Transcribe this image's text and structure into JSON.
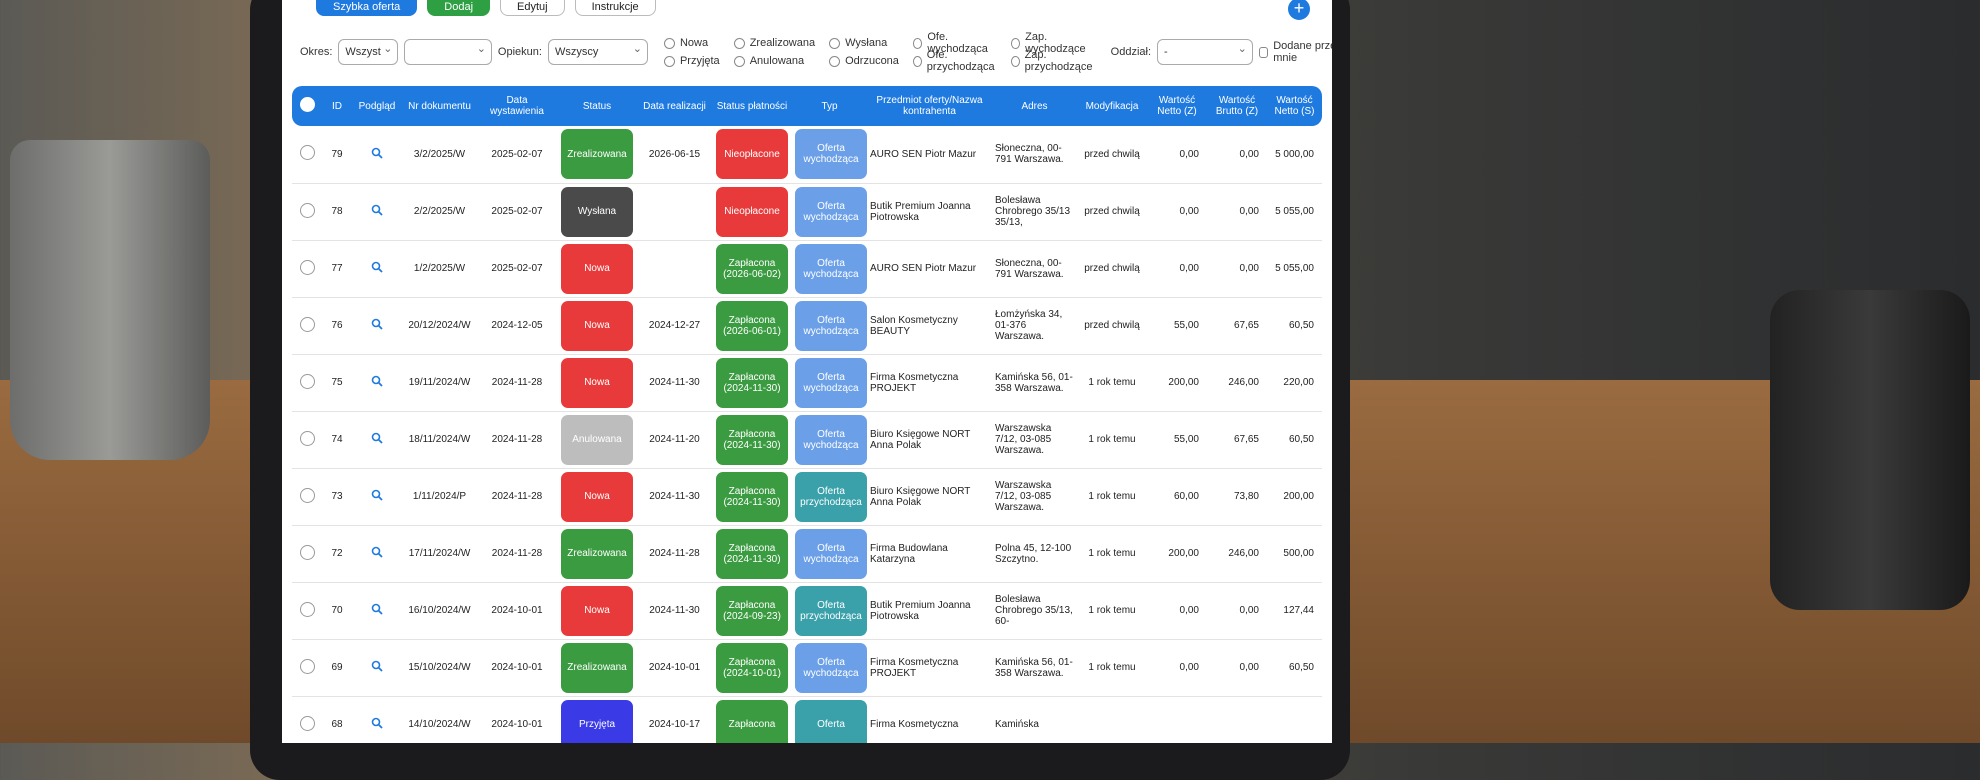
{
  "toolbar": {
    "buttons": [
      "Szybka oferta",
      "Dodaj",
      "Edytuj",
      "Instrukcje"
    ]
  },
  "filters": {
    "period_label": "Okres:",
    "period_value": "Wszyst",
    "caretaker_label": "Opiekun:",
    "caretaker_value": "Wszyscy",
    "statuses": [
      "Nowa",
      "Przyjęta",
      "Zrealizowana",
      "Anulowana",
      "Wysłana",
      "Odrzucona",
      "Ofe. wychodząca",
      "Ofe. przychodząca",
      "Zap. wychodzące",
      "Zap. przychodzące"
    ],
    "branch_label": "Oddział:",
    "branch_value": "-",
    "mine": "Dodane przeze mnie"
  },
  "table": {
    "columns": [
      "ID",
      "Podgląd",
      "Nr dokumentu",
      "Data wystawienia",
      "Status",
      "Data realizacji",
      "Status płatności",
      "Typ",
      "Przedmiot oferty/Nazwa kontrahenta",
      "Adres",
      "Modyfikacja",
      "Wartość Netto (Z)",
      "Wartość Brutto (Z)",
      "Wartość Netto (S)"
    ],
    "rows": [
      {
        "id": "79",
        "doc": "3/2/2025/W",
        "issued": "2025-02-07",
        "status": {
          "text": "Zrealizowana",
          "color": "#3b9b41"
        },
        "realized": "2026-06-15",
        "payment": {
          "text": "Nieopłacone",
          "color": "#e83a3a"
        },
        "type": {
          "text": "Oferta wychodząca",
          "color": "#6ba0e8"
        },
        "client": "AURO SEN Piotr Mazur",
        "address": "Słoneczna, 00-791 Warszawa.",
        "modified": "przed chwilą",
        "net_z": "0,00",
        "gross_z": "0,00",
        "net_s": "5 000,00"
      },
      {
        "id": "78",
        "doc": "2/2/2025/W",
        "issued": "2025-02-07",
        "status": {
          "text": "Wysłana",
          "color": "#4a4a4a"
        },
        "realized": null,
        "payment": {
          "text": "Nieopłacone",
          "color": "#e83a3a"
        },
        "type": {
          "text": "Oferta wychodząca",
          "color": "#6ba0e8"
        },
        "client": "Butik Premium Joanna Piotrowska",
        "address": "Bolesława Chrobrego 35/13 35/13,",
        "modified": "przed chwilą",
        "net_z": "0,00",
        "gross_z": "0,00",
        "net_s": "5 055,00"
      },
      {
        "id": "77",
        "doc": "1/2/2025/W",
        "issued": "2025-02-07",
        "status": {
          "text": "Nowa",
          "color": "#e83a3a"
        },
        "realized": null,
        "payment": {
          "text": "Zapłacona (2026-06-02)",
          "color": "#3b9b41"
        },
        "type": {
          "text": "Oferta wychodząca",
          "color": "#6ba0e8"
        },
        "client": "AURO SEN Piotr Mazur",
        "address": "Słoneczna, 00-791 Warszawa.",
        "modified": "przed chwilą",
        "net_z": "0,00",
        "gross_z": "0,00",
        "net_s": "5 055,00"
      },
      {
        "id": "76",
        "doc": "20/12/2024/W",
        "issued": "2024-12-05",
        "status": {
          "text": "Nowa",
          "color": "#e83a3a"
        },
        "realized": "2024-12-27",
        "payment": {
          "text": "Zapłacona (2026-06-01)",
          "color": "#3b9b41"
        },
        "type": {
          "text": "Oferta wychodząca",
          "color": "#6ba0e8"
        },
        "client": "Salon Kosmetyczny BEAUTY",
        "address": "Łomżyńska 34, 01-376 Warszawa.",
        "modified": "przed chwilą",
        "net_z": "55,00",
        "gross_z": "67,65",
        "net_s": "60,50"
      },
      {
        "id": "75",
        "doc": "19/11/2024/W",
        "issued": "2024-11-28",
        "status": {
          "text": "Nowa",
          "color": "#e83a3a"
        },
        "realized": "2024-11-30",
        "payment": {
          "text": "Zapłacona (2024-11-30)",
          "color": "#3b9b41"
        },
        "type": {
          "text": "Oferta wychodząca",
          "color": "#6ba0e8"
        },
        "client": "Firma Kosmetyczna PROJEKT",
        "address": "Kamińska 56, 01-358 Warszawa.",
        "modified": "1 rok temu",
        "net_z": "200,00",
        "gross_z": "246,00",
        "net_s": "220,00"
      },
      {
        "id": "74",
        "doc": "18/11/2024/W",
        "issued": "2024-11-28",
        "status": {
          "text": "Anulowana",
          "color": "#bdbdbd"
        },
        "realized": "2024-11-20",
        "payment": {
          "text": "Zapłacona (2024-11-30)",
          "color": "#3b9b41"
        },
        "type": {
          "text": "Oferta wychodząca",
          "color": "#6ba0e8"
        },
        "client": "Biuro Księgowe NORT Anna Polak",
        "address": "Warszawska 7/12, 03-085 Warszawa.",
        "modified": "1 rok temu",
        "net_z": "55,00",
        "gross_z": "67,65",
        "net_s": "60,50"
      },
      {
        "id": "73",
        "doc": "1/11/2024/P",
        "issued": "2024-11-28",
        "status": {
          "text": "Nowa",
          "color": "#e83a3a"
        },
        "realized": "2024-11-30",
        "payment": {
          "text": "Zapłacona (2024-11-30)",
          "color": "#3b9b41"
        },
        "type": {
          "text": "Oferta przychodząca",
          "color": "#3aa0aa"
        },
        "client": "Biuro Księgowe NORT Anna Polak",
        "address": "Warszawska 7/12, 03-085 Warszawa.",
        "modified": "1 rok temu",
        "net_z": "60,00",
        "gross_z": "73,80",
        "net_s": "200,00"
      },
      {
        "id": "72",
        "doc": "17/11/2024/W",
        "issued": "2024-11-28",
        "status": {
          "text": "Zrealizowana",
          "color": "#3b9b41"
        },
        "realized": "2024-11-28",
        "payment": {
          "text": "Zapłacona (2024-11-30)",
          "color": "#3b9b41"
        },
        "type": {
          "text": "Oferta wychodząca",
          "color": "#6ba0e8"
        },
        "client": "Firma Budowlana Katarzyna",
        "address": "Polna 45, 12-100 Szczytno.",
        "modified": "1 rok temu",
        "net_z": "200,00",
        "gross_z": "246,00",
        "net_s": "500,00"
      },
      {
        "id": "70",
        "doc": "16/10/2024/W",
        "issued": "2024-10-01",
        "status": {
          "text": "Nowa",
          "color": "#e83a3a"
        },
        "realized": "2024-11-30",
        "payment": {
          "text": "Zapłacona (2024-09-23)",
          "color": "#3b9b41"
        },
        "type": {
          "text": "Oferta przychodząca",
          "color": "#3aa0aa"
        },
        "client": "Butik Premium Joanna Piotrowska",
        "address": "Bolesława Chrobrego 35/13, 60-",
        "modified": "1 rok temu",
        "net_z": "0,00",
        "gross_z": "0,00",
        "net_s": "127,44"
      },
      {
        "id": "69",
        "doc": "15/10/2024/W",
        "issued": "2024-10-01",
        "status": {
          "text": "Zrealizowana",
          "color": "#3b9b41"
        },
        "realized": "2024-10-01",
        "payment": {
          "text": "Zapłacona (2024-10-01)",
          "color": "#3b9b41"
        },
        "type": {
          "text": "Oferta wychodząca",
          "color": "#6ba0e8"
        },
        "client": "Firma Kosmetyczna PROJEKT",
        "address": "Kamińska 56, 01-358 Warszawa.",
        "modified": "1 rok temu",
        "net_z": "0,00",
        "gross_z": "0,00",
        "net_s": "60,50"
      },
      {
        "id": "68",
        "doc": "14/10/2024/W",
        "issued": "2024-10-01",
        "status": {
          "text": "Przyjęta",
          "color": "#3a3ae6"
        },
        "realized": "2024-10-17",
        "payment": {
          "text": "Zapłacona",
          "color": "#3b9b41"
        },
        "type": {
          "text": "Oferta",
          "color": "#3aa0aa"
        },
        "client": "Firma Kosmetyczna",
        "address": "Kamińska",
        "modified": null,
        "net_z": null,
        "gross_z": null,
        "net_s": null
      }
    ]
  }
}
